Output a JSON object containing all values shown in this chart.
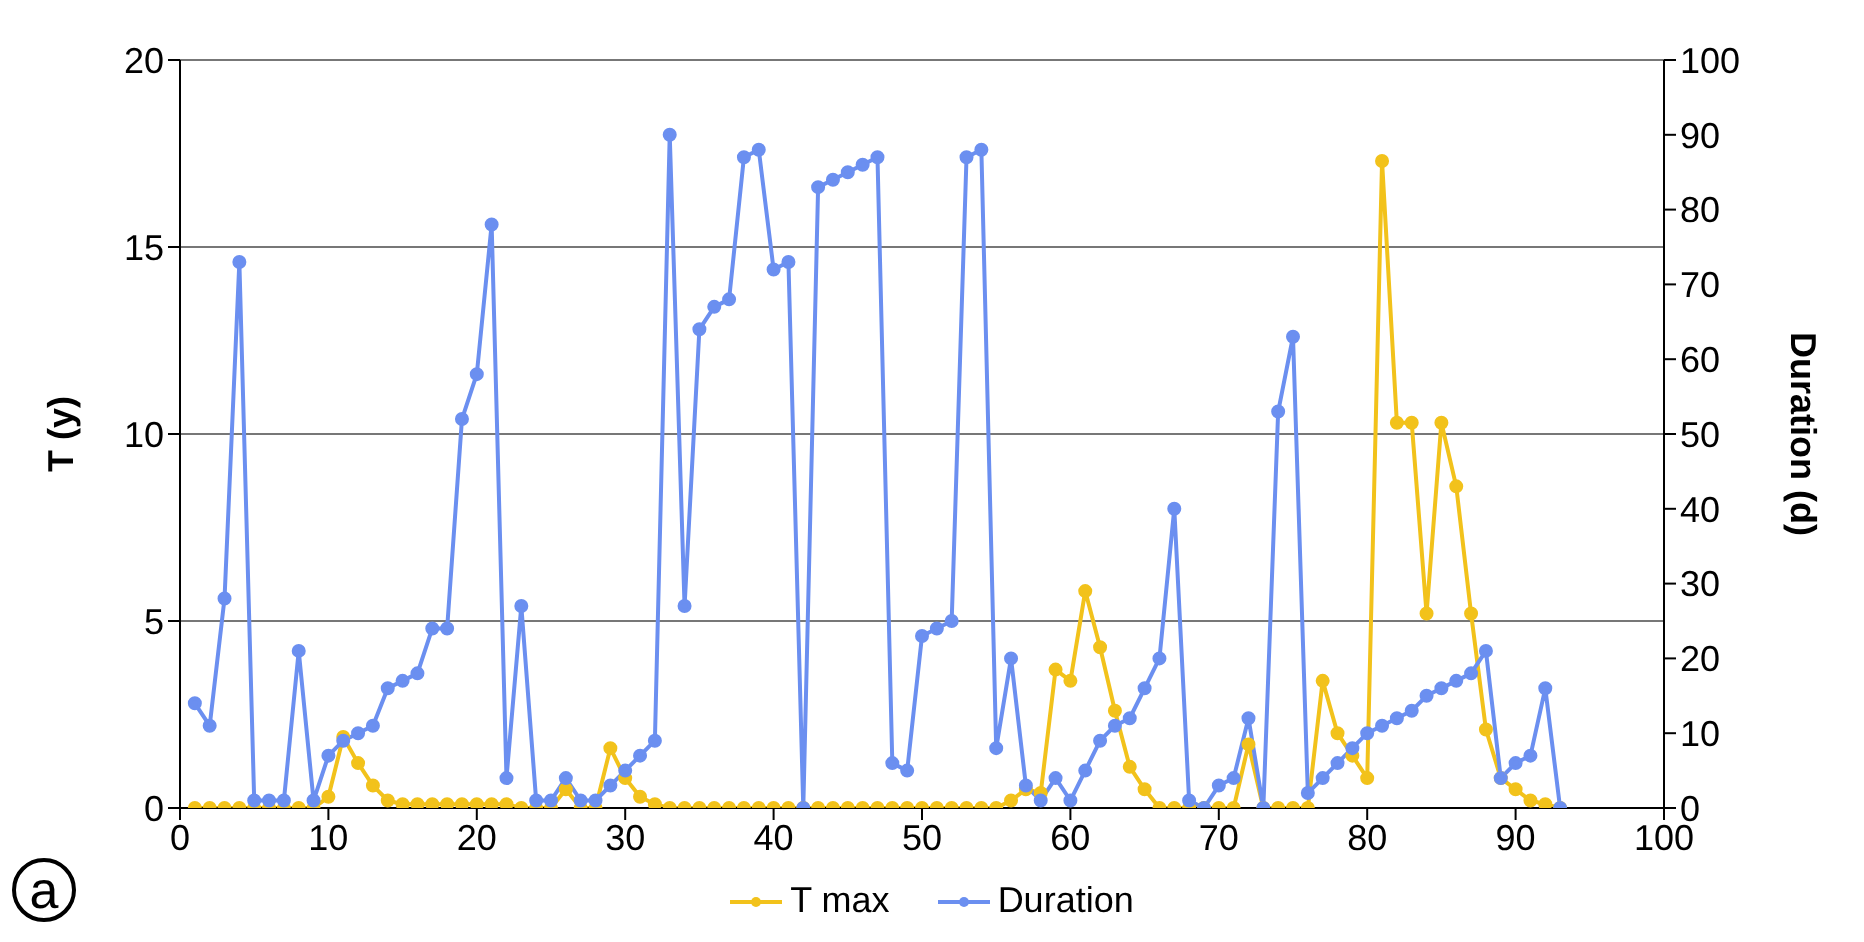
{
  "chart_data": {
    "type": "line",
    "x": [
      1,
      2,
      3,
      4,
      5,
      6,
      7,
      8,
      9,
      10,
      11,
      12,
      13,
      14,
      15,
      16,
      17,
      18,
      19,
      20,
      21,
      22,
      23,
      24,
      25,
      26,
      27,
      28,
      29,
      30,
      31,
      32,
      33,
      34,
      35,
      36,
      37,
      38,
      39,
      40,
      41,
      42,
      43,
      44,
      45,
      46,
      47,
      48,
      49,
      50,
      51,
      52,
      53,
      54,
      55,
      56,
      57,
      58,
      59,
      60,
      61,
      62,
      63,
      64,
      65,
      66,
      67,
      68,
      69,
      70,
      71,
      72,
      73,
      74,
      75,
      76,
      77,
      78,
      79,
      80,
      81,
      82,
      83,
      84,
      85,
      86,
      87,
      88,
      89,
      90,
      91,
      92,
      93
    ],
    "series": [
      {
        "name": "T max",
        "color": "#f2c21b",
        "axis": "y",
        "values": [
          0,
          0,
          0,
          0,
          0,
          0,
          0,
          0,
          0,
          0.3,
          1.9,
          1.2,
          0.6,
          0.2,
          0.1,
          0.1,
          0.1,
          0.1,
          0.1,
          0.1,
          0.1,
          0.1,
          0,
          0,
          0,
          0.5,
          0,
          0,
          1.6,
          0.8,
          0.3,
          0.1,
          0,
          0,
          0,
          0,
          0,
          0,
          0,
          0,
          0,
          0,
          0,
          0,
          0,
          0,
          0,
          0,
          0,
          0,
          0,
          0,
          0,
          0,
          0,
          0.2,
          0.5,
          0.4,
          3.7,
          3.4,
          5.8,
          4.3,
          2.6,
          1.1,
          0.5,
          0,
          0,
          0,
          0,
          0,
          0,
          1.7,
          0,
          0,
          0,
          0,
          3.4,
          2,
          1.4,
          0.8,
          17.3,
          10.3,
          10.3,
          5.2,
          10.3,
          8.6,
          5.2,
          2.1,
          0.8,
          0.5,
          0.2,
          0.1,
          0
        ]
      },
      {
        "name": "Duration",
        "color": "#6b8ff0",
        "axis": "y2",
        "values": [
          14,
          11,
          28,
          73,
          1,
          1,
          1,
          21,
          1,
          7,
          9,
          10,
          11,
          16,
          17,
          18,
          24,
          24,
          52,
          58,
          78,
          4,
          27,
          1,
          1,
          4,
          1,
          1,
          3,
          5,
          7,
          9,
          90,
          27,
          64,
          67,
          68,
          87,
          88,
          72,
          73,
          0,
          83,
          84,
          85,
          86,
          87,
          6,
          5,
          23,
          24,
          25,
          87,
          88,
          8,
          20,
          3,
          1,
          4,
          1,
          5,
          9,
          11,
          12,
          16,
          20,
          40,
          1,
          0,
          3,
          4,
          12,
          0,
          53,
          63,
          2,
          4,
          6,
          8,
          10,
          11,
          12,
          13,
          15,
          16,
          17,
          18,
          21,
          4,
          6,
          7,
          16,
          0
        ]
      }
    ],
    "ylabel": "T (y)",
    "y2label": "Duration  (d)",
    "xlim": [
      0,
      100
    ],
    "xticks": [
      0,
      10,
      20,
      30,
      40,
      50,
      60,
      70,
      80,
      90,
      100
    ],
    "ylim": [
      0,
      20
    ],
    "yticks": [
      0,
      5,
      10,
      15,
      20
    ],
    "y2lim": [
      0,
      100
    ],
    "y2ticks": [
      0,
      10,
      20,
      30,
      40,
      50,
      60,
      70,
      80,
      90,
      100
    ],
    "grid": "y",
    "legend": "bottom",
    "marker": "circle",
    "line_style": "solid",
    "annotations": [
      "a"
    ]
  }
}
